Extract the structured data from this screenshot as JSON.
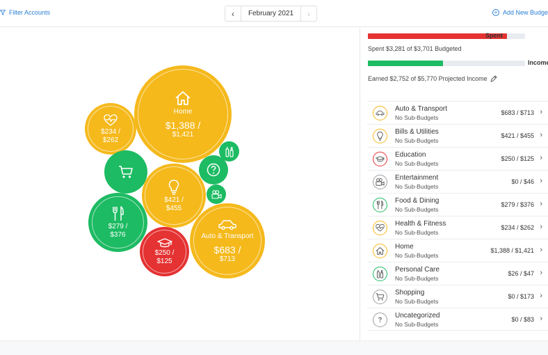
{
  "toolbar": {
    "filter_label": "Filter Accounts",
    "month_label": "February 2021",
    "prev_glyph": "‹",
    "next_glyph": "›",
    "add_label": "Add New Budget",
    "add_glyph": "+"
  },
  "colors": {
    "yellow": "#f5b91c",
    "green": "#1dbb63",
    "red": "#e53232",
    "link": "#2a7fd4"
  },
  "summary": {
    "spent_label": "Spent",
    "spent_fraction": 0.886,
    "spent_caption": "Spent $3,281 of $3,701 Budgeted",
    "income_label": "Income",
    "income_fraction": 0.477,
    "income_caption": "Earned $2,752 of $5,770 Projected Income"
  },
  "bubbles": {
    "home": {
      "name": "Home",
      "amount_line1": "$1,388 /",
      "amount_line2": "$1,421",
      "icon": "home-icon"
    },
    "health": {
      "amount_line1": "$234 /",
      "amount_line2": "$262",
      "icon": "heart-pulse-icon"
    },
    "shopping": {
      "icon": "cart-icon"
    },
    "personal": {
      "icon": "personal-care-icon"
    },
    "uncategorized": {
      "icon": "question-icon"
    },
    "bills": {
      "amount_line1": "$421 /",
      "amount_line2": "$455",
      "icon": "lightbulb-icon"
    },
    "entertainment": {
      "icon": "camera-icon"
    },
    "food": {
      "amount_line1": "$279 /",
      "amount_line2": "$376",
      "icon": "fork-knife-icon"
    },
    "auto": {
      "name": "Auto & Transport",
      "amount_line1": "$683 /",
      "amount_line2": "$713",
      "icon": "car-icon"
    },
    "education": {
      "amount_line1": "$250 /",
      "amount_line2": "$125",
      "icon": "graduation-cap-icon"
    }
  },
  "categories": [
    {
      "name": "Auto & Transport",
      "sub": "No Sub-Budgets",
      "amount": "$683 / $713",
      "status": "yellow",
      "icon": "car-icon"
    },
    {
      "name": "Bills & Utilities",
      "sub": "No Sub-Budgets",
      "amount": "$421 / $455",
      "status": "yellow",
      "icon": "lightbulb-icon"
    },
    {
      "name": "Education",
      "sub": "No Sub-Budgets",
      "amount": "$250 / $125",
      "status": "red",
      "icon": "graduation-cap-icon"
    },
    {
      "name": "Entertainment",
      "sub": "No Sub-Budgets",
      "amount": "$0 / $46",
      "status": "none",
      "icon": "camera-icon"
    },
    {
      "name": "Food & Dining",
      "sub": "No Sub-Budgets",
      "amount": "$279 / $376",
      "status": "green",
      "icon": "fork-knife-icon"
    },
    {
      "name": "Health & Fitness",
      "sub": "No Sub-Budgets",
      "amount": "$234 / $262",
      "status": "yellow",
      "icon": "heart-pulse-icon"
    },
    {
      "name": "Home",
      "sub": "No Sub-Budgets",
      "amount": "$1,388 / $1,421",
      "status": "yellow",
      "icon": "home-icon"
    },
    {
      "name": "Personal Care",
      "sub": "No Sub-Budgets",
      "amount": "$26 / $47",
      "status": "green",
      "icon": "personal-care-icon"
    },
    {
      "name": "Shopping",
      "sub": "No Sub-Budgets",
      "amount": "$0 / $173",
      "status": "none",
      "icon": "cart-icon"
    },
    {
      "name": "Uncategorized",
      "sub": "No Sub-Budgets",
      "amount": "$0 / $83",
      "status": "none",
      "icon": "question-icon"
    }
  ],
  "chevron_glyph": "›"
}
